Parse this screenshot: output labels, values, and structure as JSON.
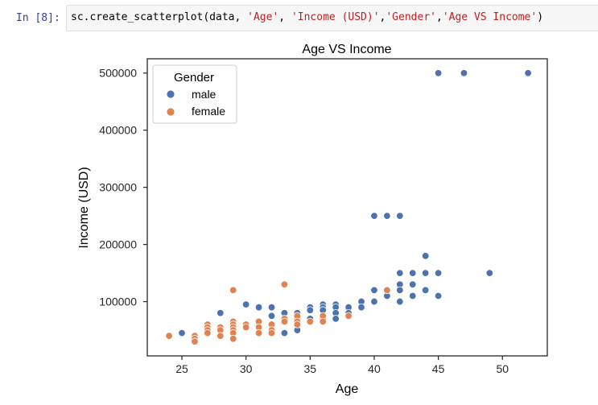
{
  "cell": {
    "prompt": "In [8]:",
    "code_parts": [
      {
        "text": "sc.create_scatterplot(data, ",
        "kind": "plain"
      },
      {
        "text": "'Age'",
        "kind": "str"
      },
      {
        "text": ", ",
        "kind": "plain"
      },
      {
        "text": "'Income (USD)'",
        "kind": "str"
      },
      {
        "text": ",",
        "kind": "plain"
      },
      {
        "text": "'Gender'",
        "kind": "str"
      },
      {
        "text": ",",
        "kind": "plain"
      },
      {
        "text": "'Age VS Income'",
        "kind": "str"
      },
      {
        "text": ")",
        "kind": "plain"
      }
    ]
  },
  "chart_data": {
    "type": "scatter",
    "title": "Age VS Income",
    "xlabel": "Age",
    "ylabel": "Income (USD)",
    "xlim": [
      22.3,
      53.5
    ],
    "ylim": [
      5000,
      525000
    ],
    "xticks": [
      25,
      30,
      35,
      40,
      45,
      50
    ],
    "yticks": [
      100000,
      200000,
      300000,
      400000,
      500000
    ],
    "grid": false,
    "legend": {
      "title": "Gender",
      "placement": "top-left"
    },
    "series": [
      {
        "name": "male",
        "color": "#4c72b0",
        "points": [
          [
            25,
            45000
          ],
          [
            28,
            80000
          ],
          [
            30,
            95000
          ],
          [
            31,
            90000
          ],
          [
            32,
            90000
          ],
          [
            32,
            75000
          ],
          [
            33,
            80000
          ],
          [
            33,
            45000
          ],
          [
            34,
            80000
          ],
          [
            34,
            70000
          ],
          [
            34,
            50000
          ],
          [
            35,
            90000
          ],
          [
            35,
            85000
          ],
          [
            35,
            70000
          ],
          [
            36,
            95000
          ],
          [
            36,
            90000
          ],
          [
            36,
            85000
          ],
          [
            36,
            70000
          ],
          [
            37,
            95000
          ],
          [
            37,
            90000
          ],
          [
            37,
            80000
          ],
          [
            37,
            70000
          ],
          [
            38,
            90000
          ],
          [
            38,
            80000
          ],
          [
            39,
            100000
          ],
          [
            39,
            90000
          ],
          [
            40,
            250000
          ],
          [
            40,
            120000
          ],
          [
            40,
            100000
          ],
          [
            41,
            250000
          ],
          [
            41,
            110000
          ],
          [
            42,
            250000
          ],
          [
            42,
            150000
          ],
          [
            42,
            130000
          ],
          [
            42,
            120000
          ],
          [
            42,
            100000
          ],
          [
            43,
            150000
          ],
          [
            43,
            130000
          ],
          [
            43,
            110000
          ],
          [
            44,
            180000
          ],
          [
            44,
            150000
          ],
          [
            44,
            120000
          ],
          [
            45,
            500000
          ],
          [
            45,
            150000
          ],
          [
            45,
            110000
          ],
          [
            47,
            500000
          ],
          [
            49,
            150000
          ],
          [
            52,
            500000
          ]
        ]
      },
      {
        "name": "female",
        "color": "#dd8452",
        "points": [
          [
            24,
            40000
          ],
          [
            26,
            40000
          ],
          [
            26,
            35000
          ],
          [
            26,
            30000
          ],
          [
            27,
            60000
          ],
          [
            27,
            55000
          ],
          [
            27,
            50000
          ],
          [
            27,
            45000
          ],
          [
            28,
            55000
          ],
          [
            28,
            50000
          ],
          [
            28,
            40000
          ],
          [
            29,
            120000
          ],
          [
            29,
            65000
          ],
          [
            29,
            60000
          ],
          [
            29,
            55000
          ],
          [
            29,
            50000
          ],
          [
            29,
            45000
          ],
          [
            29,
            35000
          ],
          [
            30,
            60000
          ],
          [
            30,
            55000
          ],
          [
            31,
            65000
          ],
          [
            31,
            55000
          ],
          [
            31,
            45000
          ],
          [
            32,
            60000
          ],
          [
            32,
            50000
          ],
          [
            32,
            45000
          ],
          [
            33,
            130000
          ],
          [
            33,
            70000
          ],
          [
            33,
            65000
          ],
          [
            34,
            75000
          ],
          [
            34,
            65000
          ],
          [
            34,
            60000
          ],
          [
            35,
            65000
          ],
          [
            36,
            75000
          ],
          [
            36,
            65000
          ],
          [
            38,
            75000
          ],
          [
            41,
            120000
          ]
        ]
      }
    ]
  }
}
